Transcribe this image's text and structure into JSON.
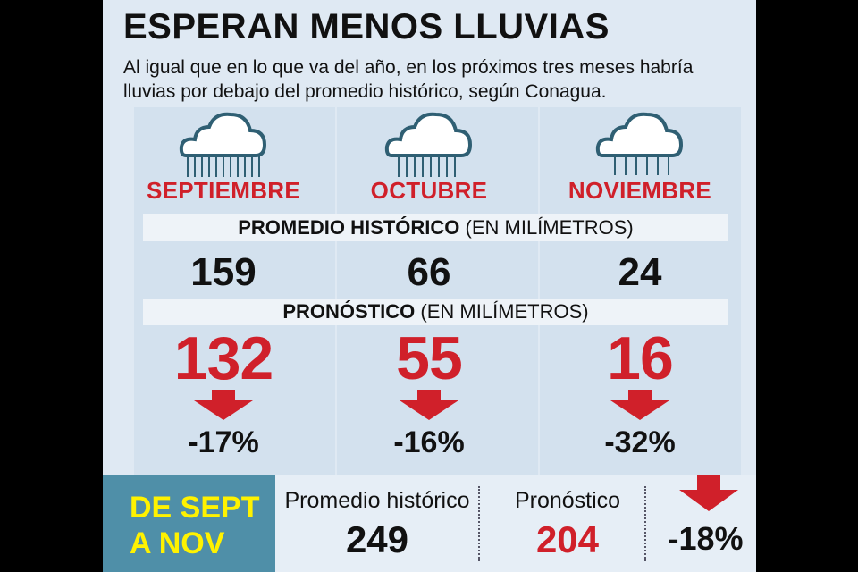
{
  "title": "ESPERAN MENOS LLUVIAS",
  "subtitle": "Al igual que en lo que va del año, en los próximos tres meses habría lluvias por debajo del promedio histórico, según Conagua.",
  "band_historico": {
    "bold": "PROMEDIO HISTÓRICO",
    "unit": "(EN MILÍMETROS)"
  },
  "band_pronostico": {
    "bold": "PRONÓSTICO",
    "unit": "(EN MILÍMETROS)"
  },
  "months": [
    {
      "name": "SEPTIEMBRE",
      "historico": "159",
      "pronostico": "132",
      "change": "-17%"
    },
    {
      "name": "OCTUBRE",
      "historico": "66",
      "pronostico": "55",
      "change": "-16%"
    },
    {
      "name": "NOVIEMBRE",
      "historico": "24",
      "pronostico": "16",
      "change": "-32%"
    }
  ],
  "summary": {
    "period": "DE SEPT A NOV",
    "historico_label": "Promedio histórico",
    "historico_value": "249",
    "pronostico_label": "Pronóstico",
    "pronostico_value": "204",
    "change": "-18%"
  },
  "colors": {
    "accent_red": "#d0202a",
    "cloud_outline": "#2f5f73",
    "summary_box": "#4f8fa8",
    "summary_text": "#fff200"
  }
}
